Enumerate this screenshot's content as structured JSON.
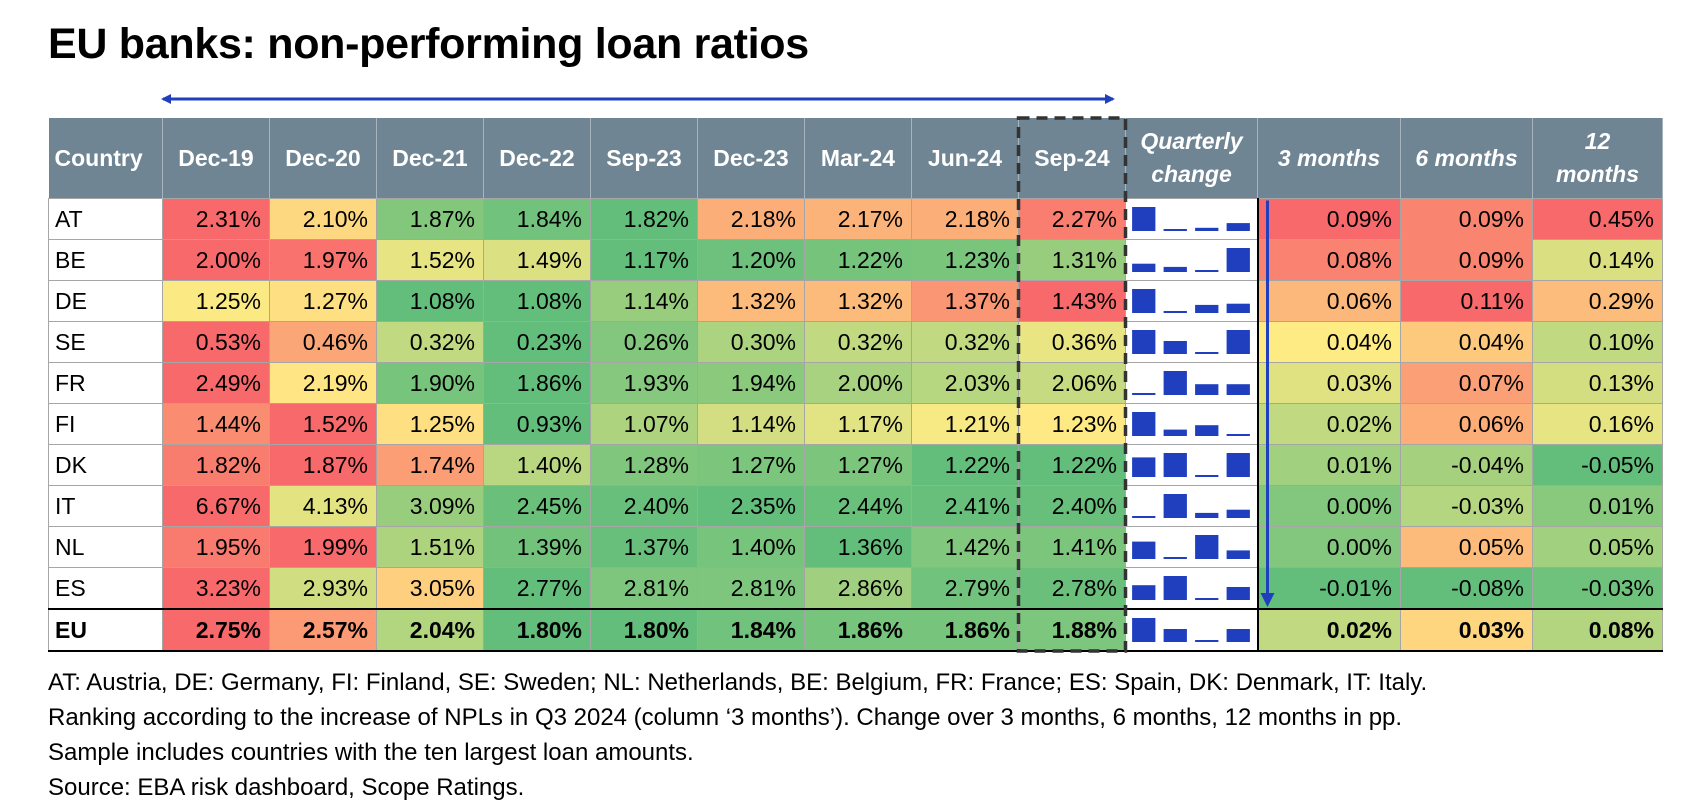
{
  "title": "EU banks: non-performing loan ratios",
  "headers": {
    "country": "Country",
    "periods": [
      "Dec-19",
      "Dec-20",
      "Dec-21",
      "Dec-22",
      "Sep-23",
      "Dec-23",
      "Mar-24",
      "Jun-24",
      "Sep-24"
    ],
    "quarterly_line1": "Quarterly",
    "quarterly_line2": "change",
    "m3": "3 months",
    "m6": "6 months",
    "m12_line1": "12",
    "m12_line2": "months"
  },
  "colors": {
    "header_bg": "#6f8593",
    "low": "#63be7b",
    "mid": "#ffeb84",
    "high": "#f8696b",
    "sparkbar": "#1f3fbf",
    "arrow": "#1f3fbf"
  },
  "chart_data": {
    "type": "table",
    "rows": [
      {
        "country": "AT",
        "values": [
          "2.31%",
          "2.10%",
          "1.87%",
          "1.84%",
          "1.82%",
          "2.18%",
          "2.17%",
          "2.18%",
          "2.27%"
        ],
        "m3": "0.09%",
        "m6": "0.09%",
        "m12": "0.45%"
      },
      {
        "country": "BE",
        "values": [
          "2.00%",
          "1.97%",
          "1.52%",
          "1.49%",
          "1.17%",
          "1.20%",
          "1.22%",
          "1.23%",
          "1.31%"
        ],
        "m3": "0.08%",
        "m6": "0.09%",
        "m12": "0.14%"
      },
      {
        "country": "DE",
        "values": [
          "1.25%",
          "1.27%",
          "1.08%",
          "1.08%",
          "1.14%",
          "1.32%",
          "1.32%",
          "1.37%",
          "1.43%"
        ],
        "m3": "0.06%",
        "m6": "0.11%",
        "m12": "0.29%"
      },
      {
        "country": "SE",
        "values": [
          "0.53%",
          "0.46%",
          "0.32%",
          "0.23%",
          "0.26%",
          "0.30%",
          "0.32%",
          "0.32%",
          "0.36%"
        ],
        "m3": "0.04%",
        "m6": "0.04%",
        "m12": "0.10%"
      },
      {
        "country": "FR",
        "values": [
          "2.49%",
          "2.19%",
          "1.90%",
          "1.86%",
          "1.93%",
          "1.94%",
          "2.00%",
          "2.03%",
          "2.06%"
        ],
        "m3": "0.03%",
        "m6": "0.07%",
        "m12": "0.13%"
      },
      {
        "country": "FI",
        "values": [
          "1.44%",
          "1.52%",
          "1.25%",
          "0.93%",
          "1.07%",
          "1.14%",
          "1.17%",
          "1.21%",
          "1.23%"
        ],
        "m3": "0.02%",
        "m6": "0.06%",
        "m12": "0.16%"
      },
      {
        "country": "DK",
        "values": [
          "1.82%",
          "1.87%",
          "1.74%",
          "1.40%",
          "1.28%",
          "1.27%",
          "1.27%",
          "1.22%",
          "1.22%"
        ],
        "m3": "0.01%",
        "m6": "-0.04%",
        "m12": "-0.05%"
      },
      {
        "country": "IT",
        "values": [
          "6.67%",
          "4.13%",
          "3.09%",
          "2.45%",
          "2.40%",
          "2.35%",
          "2.44%",
          "2.41%",
          "2.40%"
        ],
        "m3": "0.00%",
        "m6": "-0.03%",
        "m12": "0.01%"
      },
      {
        "country": "NL",
        "values": [
          "1.95%",
          "1.99%",
          "1.51%",
          "1.39%",
          "1.37%",
          "1.40%",
          "1.36%",
          "1.42%",
          "1.41%"
        ],
        "m3": "0.00%",
        "m6": "0.05%",
        "m12": "0.05%"
      },
      {
        "country": "ES",
        "values": [
          "3.23%",
          "2.93%",
          "3.05%",
          "2.77%",
          "2.81%",
          "2.81%",
          "2.86%",
          "2.79%",
          "2.78%"
        ],
        "m3": "-0.01%",
        "m6": "-0.08%",
        "m12": "-0.03%"
      }
    ],
    "total": {
      "country": "EU",
      "values": [
        "2.75%",
        "2.57%",
        "2.04%",
        "1.80%",
        "1.80%",
        "1.84%",
        "1.86%",
        "1.86%",
        "1.88%"
      ],
      "m3": "0.02%",
      "m6": "0.03%",
      "m12": "0.08%"
    }
  },
  "footnotes": [
    "AT: Austria, DE: Germany, FI: Finland, SE: Sweden; NL: Netherlands, BE: Belgium, FR: France; ES: Spain, DK: Denmark, IT: Italy.",
    "Ranking according to the increase of NPLs in Q3 2024 (column ‘3 months’). Change over 3 months, 6 months, 12 months in pp.",
    "Sample includes countries with the ten largest loan amounts.",
    "Source: EBA risk dashboard, Scope Ratings."
  ]
}
